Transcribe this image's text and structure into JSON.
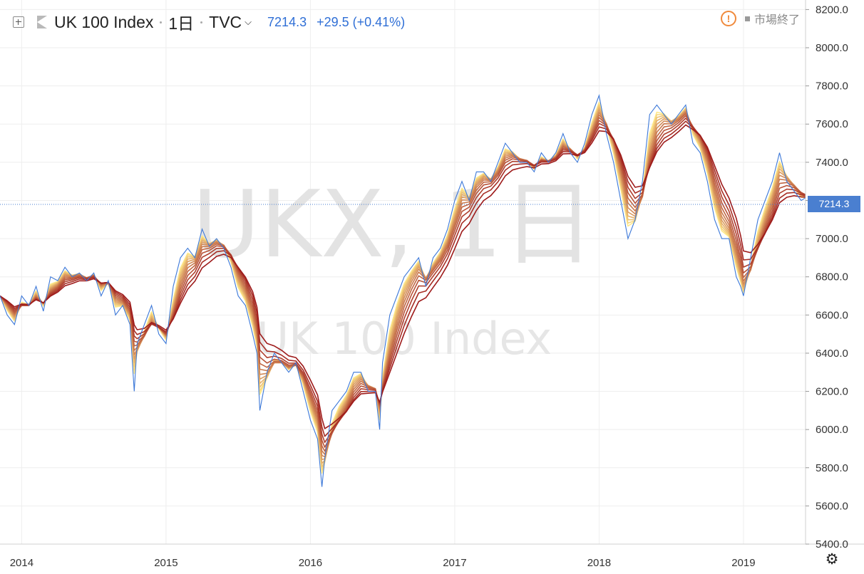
{
  "header": {
    "symbol_name": "UK 100 Index",
    "interval": "1日",
    "exchange": "TVC",
    "last_price": "7214.3",
    "change": "+29.5 (+0.41%)"
  },
  "status": {
    "market_status": "市場終了",
    "warn_icon": "exclamation-circle-icon"
  },
  "watermark": {
    "symbol": "UKX, 1日",
    "description": "UK 100 Index"
  },
  "price_tag": {
    "label": "7214.3"
  },
  "settings": {
    "icon": "gear-icon"
  },
  "colors": {
    "price_line": "#3c78d8",
    "last_price_tag": "#4a7fd0",
    "ribbon_dark": "#9e1b1b",
    "ribbon_light": "#ffe98a",
    "accent": "#2f6fd6"
  },
  "chart_data": {
    "type": "line",
    "title": "UK 100 Index",
    "xlabel": "",
    "ylabel": "",
    "grid": true,
    "ylim": [
      5400,
      8250
    ],
    "xlim": [
      2013.85,
      2019.43
    ],
    "y_ticks": [
      "5400.0",
      "5600.0",
      "5800.0",
      "6000.0",
      "6200.0",
      "6400.0",
      "6600.0",
      "6800.0",
      "7000.0",
      "7200.0",
      "7400.0",
      "7600.0",
      "7800.0",
      "8000.0",
      "8200.0"
    ],
    "x_ticks": [
      "2014",
      "2015",
      "2016",
      "2017",
      "2018",
      "2019"
    ],
    "last_value": 7214.3,
    "series": [
      {
        "values_x": [
          2013.85,
          2013.9,
          2013.95,
          2014.0,
          2014.05,
          2014.1,
          2014.15,
          2014.2,
          2014.25,
          2014.3,
          2014.35,
          2014.4,
          2014.45,
          2014.5,
          2014.55,
          2014.6,
          2014.65,
          2014.7,
          2014.75,
          2014.78,
          2014.8,
          2014.85,
          2014.9,
          2014.95,
          2015.0,
          2015.05,
          2015.1,
          2015.15,
          2015.2,
          2015.25,
          2015.3,
          2015.35,
          2015.4,
          2015.45,
          2015.5,
          2015.55,
          2015.6,
          2015.63,
          2015.65,
          2015.7,
          2015.75,
          2015.8,
          2015.85,
          2015.9,
          2015.95,
          2016.0,
          2016.05,
          2016.08,
          2016.1,
          2016.15,
          2016.2,
          2016.25,
          2016.3,
          2016.35,
          2016.4,
          2016.45,
          2016.48,
          2016.5,
          2016.55,
          2016.6,
          2016.65,
          2016.7,
          2016.75,
          2016.8,
          2016.85,
          2016.9,
          2016.95,
          2017.0,
          2017.05,
          2017.1,
          2017.15,
          2017.2,
          2017.25,
          2017.3,
          2017.35,
          2017.4,
          2017.45,
          2017.5,
          2017.55,
          2017.6,
          2017.65,
          2017.7,
          2017.75,
          2017.8,
          2017.85,
          2017.9,
          2017.95,
          2018.0,
          2018.05,
          2018.1,
          2018.15,
          2018.2,
          2018.25,
          2018.3,
          2018.35,
          2018.4,
          2018.45,
          2018.5,
          2018.55,
          2018.6,
          2018.65,
          2018.7,
          2018.75,
          2018.8,
          2018.85,
          2018.9,
          2018.95,
          2018.98,
          2019.0,
          2019.05,
          2019.1,
          2019.15,
          2019.2,
          2019.25,
          2019.3,
          2019.35,
          2019.4,
          2019.43
        ],
        "values_y": [
          6700,
          6600,
          6550,
          6700,
          6650,
          6750,
          6620,
          6800,
          6780,
          6850,
          6800,
          6820,
          6780,
          6820,
          6700,
          6780,
          6600,
          6650,
          6550,
          6200,
          6450,
          6550,
          6650,
          6500,
          6450,
          6750,
          6900,
          6950,
          6900,
          7050,
          6960,
          7000,
          6950,
          6850,
          6700,
          6650,
          6500,
          6400,
          6100,
          6300,
          6400,
          6350,
          6300,
          6350,
          6200,
          6050,
          5950,
          5700,
          5850,
          6100,
          6150,
          6200,
          6300,
          6300,
          6200,
          6200,
          6000,
          6350,
          6600,
          6700,
          6800,
          6850,
          6900,
          6750,
          6900,
          6950,
          7050,
          7200,
          7300,
          7200,
          7350,
          7350,
          7300,
          7400,
          7500,
          7450,
          7400,
          7400,
          7350,
          7450,
          7400,
          7450,
          7550,
          7450,
          7400,
          7500,
          7650,
          7750,
          7550,
          7400,
          7200,
          7000,
          7100,
          7300,
          7650,
          7700,
          7650,
          7600,
          7650,
          7700,
          7500,
          7450,
          7300,
          7100,
          7000,
          7000,
          6800,
          6750,
          6700,
          6900,
          7100,
          7200,
          7300,
          7450,
          7300,
          7250,
          7200,
          7214
        ]
      }
    ]
  }
}
